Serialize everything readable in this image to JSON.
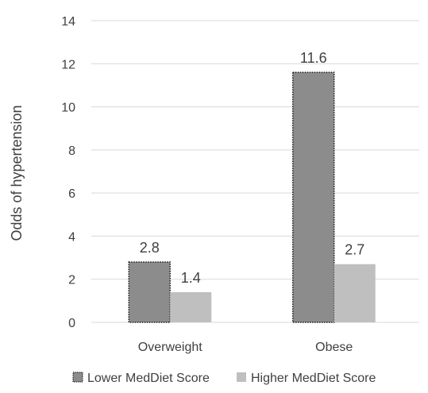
{
  "chart_data": {
    "type": "bar",
    "title": "",
    "xlabel": "",
    "ylabel": "Odds of hypertension",
    "ylim": [
      0,
      14
    ],
    "yticks": [
      0,
      2,
      4,
      6,
      8,
      10,
      12,
      14
    ],
    "grid": true,
    "legend_position": "bottom",
    "categories": [
      "Overweight",
      "Obese"
    ],
    "series": [
      {
        "name": "Lower MedDiet Score",
        "values": [
          2.8,
          11.6
        ],
        "labels": [
          "2.8",
          "11.6"
        ],
        "color": "#8c8c8c",
        "border": "dotted"
      },
      {
        "name": "Higher MedDiet Score",
        "values": [
          1.4,
          2.7
        ],
        "labels": [
          "1.4",
          "2.7"
        ],
        "color": "#bfbfbf",
        "border": "none"
      }
    ]
  }
}
